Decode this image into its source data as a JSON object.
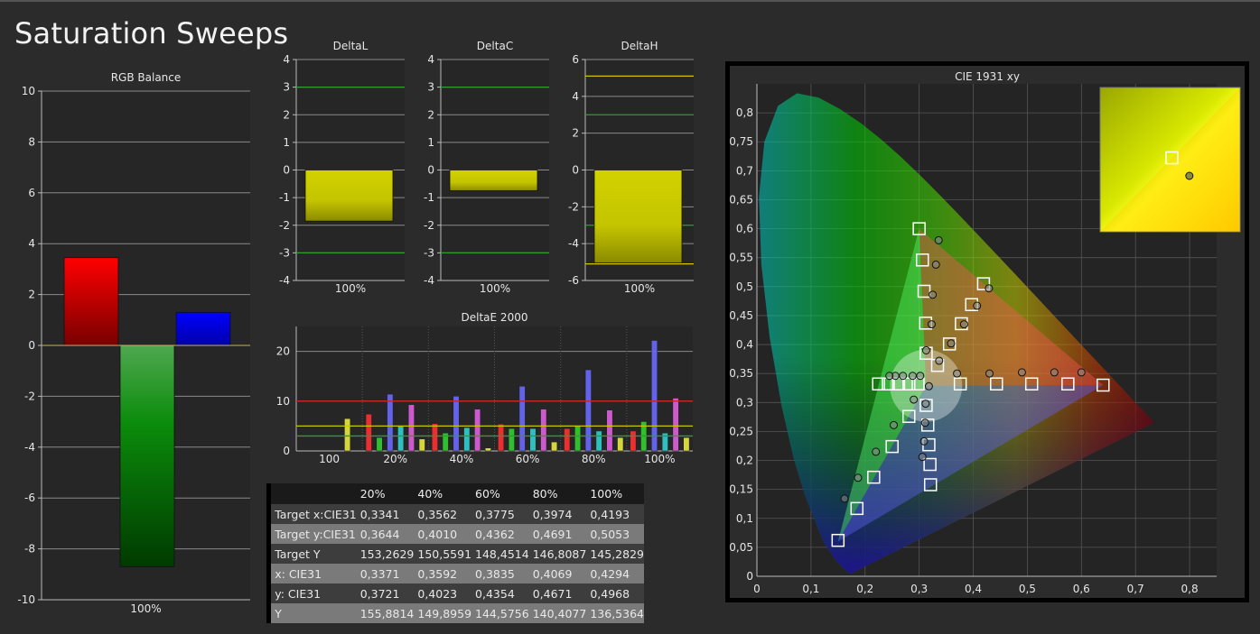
{
  "page_title": "Saturation Sweeps",
  "chart_data": [
    {
      "id": "rgb",
      "type": "bar",
      "title": "RGB Balance",
      "categories": [
        "100%"
      ],
      "ylim": [
        -10,
        10
      ],
      "yticks": [
        -10,
        -8,
        -6,
        -4,
        -2,
        0,
        2,
        4,
        6,
        8,
        10
      ],
      "series": [
        {
          "color": "#ff0000",
          "values": [
            3.45
          ]
        },
        {
          "color": "#00aa00",
          "values": [
            -8.7
          ]
        },
        {
          "color": "#0000ff",
          "values": [
            1.3
          ]
        }
      ]
    },
    {
      "id": "dl",
      "type": "bar",
      "title": "DeltaL",
      "categories": [
        "100%"
      ],
      "ylim": [
        -4,
        4
      ],
      "yticks": [
        -4,
        -3,
        -2,
        -1,
        0,
        1,
        2,
        3,
        4
      ],
      "values": [
        -1.85
      ],
      "color": "#c8c800",
      "guides": [
        {
          "value": 3,
          "color": "#2e9e2e"
        },
        {
          "value": -3,
          "color": "#2e9e2e"
        }
      ]
    },
    {
      "id": "dc",
      "type": "bar",
      "title": "DeltaC",
      "categories": [
        "100%"
      ],
      "ylim": [
        -4,
        4
      ],
      "yticks": [
        -4,
        -3,
        -2,
        -1,
        0,
        1,
        2,
        3,
        4
      ],
      "values": [
        -0.75
      ],
      "color": "#c8c800",
      "guides": [
        {
          "value": 3,
          "color": "#2e9e2e"
        },
        {
          "value": -3,
          "color": "#2e9e2e"
        }
      ]
    },
    {
      "id": "dh",
      "type": "bar",
      "title": "DeltaH",
      "categories": [
        "100%"
      ],
      "ylim": [
        -6,
        6
      ],
      "yticks": [
        -6,
        -4,
        -2,
        0,
        2,
        4,
        6
      ],
      "values": [
        -5.05
      ],
      "color": "#c8c800",
      "guides": [
        {
          "value": 5.1,
          "color": "#d4c400"
        },
        {
          "value": 3,
          "color": "#2e9e2e"
        },
        {
          "value": -3,
          "color": "#2e9e2e"
        },
        {
          "value": -5.1,
          "color": "#d4c400"
        }
      ]
    },
    {
      "id": "de",
      "type": "bar",
      "title": "DeltaE 2000",
      "categories": [
        "100",
        "20%",
        "40%",
        "60%",
        "80%",
        "100%"
      ],
      "ylim": [
        0,
        25
      ],
      "yticks": [
        0,
        10,
        20
      ],
      "guides": [
        {
          "value": 10,
          "color": "#cc2222"
        },
        {
          "value": 5,
          "color": "#c8c800"
        },
        {
          "value": 3,
          "color": "#2e9e2e"
        }
      ],
      "series": [
        {
          "color": "#ff3030",
          "values": [
            null,
            7.4,
            5.5,
            5.4,
            4.5,
            4.0
          ]
        },
        {
          "color": "#30d030",
          "values": [
            null,
            2.7,
            3.6,
            4.5,
            5.1,
            5.9
          ]
        },
        {
          "color": "#6a6aff",
          "values": [
            null,
            11.4,
            11.0,
            13.0,
            16.3,
            22.2
          ]
        },
        {
          "color": "#30d0d0",
          "values": [
            null,
            5.0,
            4.7,
            4.5,
            4.0,
            3.6
          ]
        },
        {
          "color": "#e060e0",
          "values": [
            null,
            9.3,
            8.4,
            8.4,
            8.2,
            10.6
          ]
        },
        {
          "color": "#e8e840",
          "values": [
            6.5,
            2.4,
            0.6,
            1.8,
            2.7,
            2.7
          ]
        }
      ]
    },
    {
      "id": "cie",
      "type": "scatter",
      "title": "CIE 1931 xy",
      "xlim": [
        0,
        0.85
      ],
      "ylim": [
        0,
        0.85
      ],
      "xticks": [
        "0",
        "0,1",
        "0,2",
        "0,3",
        "0,4",
        "0,5",
        "0,6",
        "0,7",
        "0,8"
      ],
      "yticks": [
        "0",
        "0,05",
        "0,1",
        "0,15",
        "0,2",
        "0,25",
        "0,3",
        "0,35",
        "0,4",
        "0,45",
        "0,5",
        "0,55",
        "0,6",
        "0,65",
        "0,7",
        "0,75",
        "0,8"
      ],
      "gamut": [
        [
          0.64,
          0.33
        ],
        [
          0.3,
          0.6
        ],
        [
          0.15,
          0.06
        ]
      ],
      "white": [
        0.3127,
        0.329
      ],
      "targets": [
        [
          0.376,
          0.332
        ],
        [
          0.443,
          0.332
        ],
        [
          0.508,
          0.332
        ],
        [
          0.575,
          0.332
        ],
        [
          0.64,
          0.33
        ],
        [
          0.313,
          0.385
        ],
        [
          0.312,
          0.437
        ],
        [
          0.309,
          0.492
        ],
        [
          0.306,
          0.546
        ],
        [
          0.3,
          0.6
        ],
        [
          0.334,
          0.364
        ],
        [
          0.356,
          0.401
        ],
        [
          0.378,
          0.436
        ],
        [
          0.397,
          0.469
        ],
        [
          0.419,
          0.505
        ],
        [
          0.298,
          0.332
        ],
        [
          0.281,
          0.332
        ],
        [
          0.262,
          0.332
        ],
        [
          0.243,
          0.332
        ],
        [
          0.225,
          0.332
        ],
        [
          0.313,
          0.295
        ],
        [
          0.316,
          0.261
        ],
        [
          0.318,
          0.227
        ],
        [
          0.32,
          0.193
        ],
        [
          0.321,
          0.158
        ],
        [
          0.281,
          0.276
        ],
        [
          0.25,
          0.224
        ],
        [
          0.216,
          0.171
        ],
        [
          0.185,
          0.117
        ],
        [
          0.15,
          0.062
        ]
      ],
      "measured": [
        [
          0.37,
          0.35
        ],
        [
          0.43,
          0.35
        ],
        [
          0.49,
          0.352
        ],
        [
          0.55,
          0.352
        ],
        [
          0.6,
          0.352
        ],
        [
          0.313,
          0.39
        ],
        [
          0.323,
          0.435
        ],
        [
          0.325,
          0.486
        ],
        [
          0.331,
          0.538
        ],
        [
          0.336,
          0.58
        ],
        [
          0.337,
          0.372
        ],
        [
          0.359,
          0.402
        ],
        [
          0.383,
          0.435
        ],
        [
          0.407,
          0.467
        ],
        [
          0.429,
          0.497
        ],
        [
          0.302,
          0.346
        ],
        [
          0.288,
          0.346
        ],
        [
          0.27,
          0.346
        ],
        [
          0.256,
          0.346
        ],
        [
          0.245,
          0.346
        ],
        [
          0.312,
          0.298
        ],
        [
          0.311,
          0.265
        ],
        [
          0.309,
          0.233
        ],
        [
          0.306,
          0.206
        ],
        [
          0.318,
          0.328
        ],
        [
          0.29,
          0.305
        ],
        [
          0.253,
          0.261
        ],
        [
          0.22,
          0.215
        ],
        [
          0.187,
          0.17
        ],
        [
          0.162,
          0.134
        ]
      ],
      "zoom_target": [
        0.641,
        0.331
      ],
      "zoom_measured": [
        0.651,
        0.321
      ]
    }
  ],
  "table": {
    "headers": [
      "",
      "20%",
      "40%",
      "60%",
      "80%",
      "100%"
    ],
    "rows": [
      {
        "label": "Target x:CIE31",
        "values": [
          "0,3341",
          "0,3562",
          "0,3775",
          "0,3974",
          "0,4193"
        ]
      },
      {
        "label": "Target y:CIE31",
        "values": [
          "0,3644",
          "0,4010",
          "0,4362",
          "0,4691",
          "0,5053"
        ]
      },
      {
        "label": "Target Y",
        "values": [
          "153,2629",
          "150,5591",
          "148,4514",
          "146,8087",
          "145,2829"
        ]
      },
      {
        "label": "x: CIE31",
        "values": [
          "0,3371",
          "0,3592",
          "0,3835",
          "0,4069",
          "0,4294"
        ]
      },
      {
        "label": "y: CIE31",
        "values": [
          "0,3721",
          "0,4023",
          "0,4354",
          "0,4671",
          "0,4968"
        ]
      },
      {
        "label": "Y",
        "values": [
          "155,8814",
          "149,8959",
          "144,5756",
          "140,4077",
          "136,5364"
        ]
      }
    ]
  }
}
